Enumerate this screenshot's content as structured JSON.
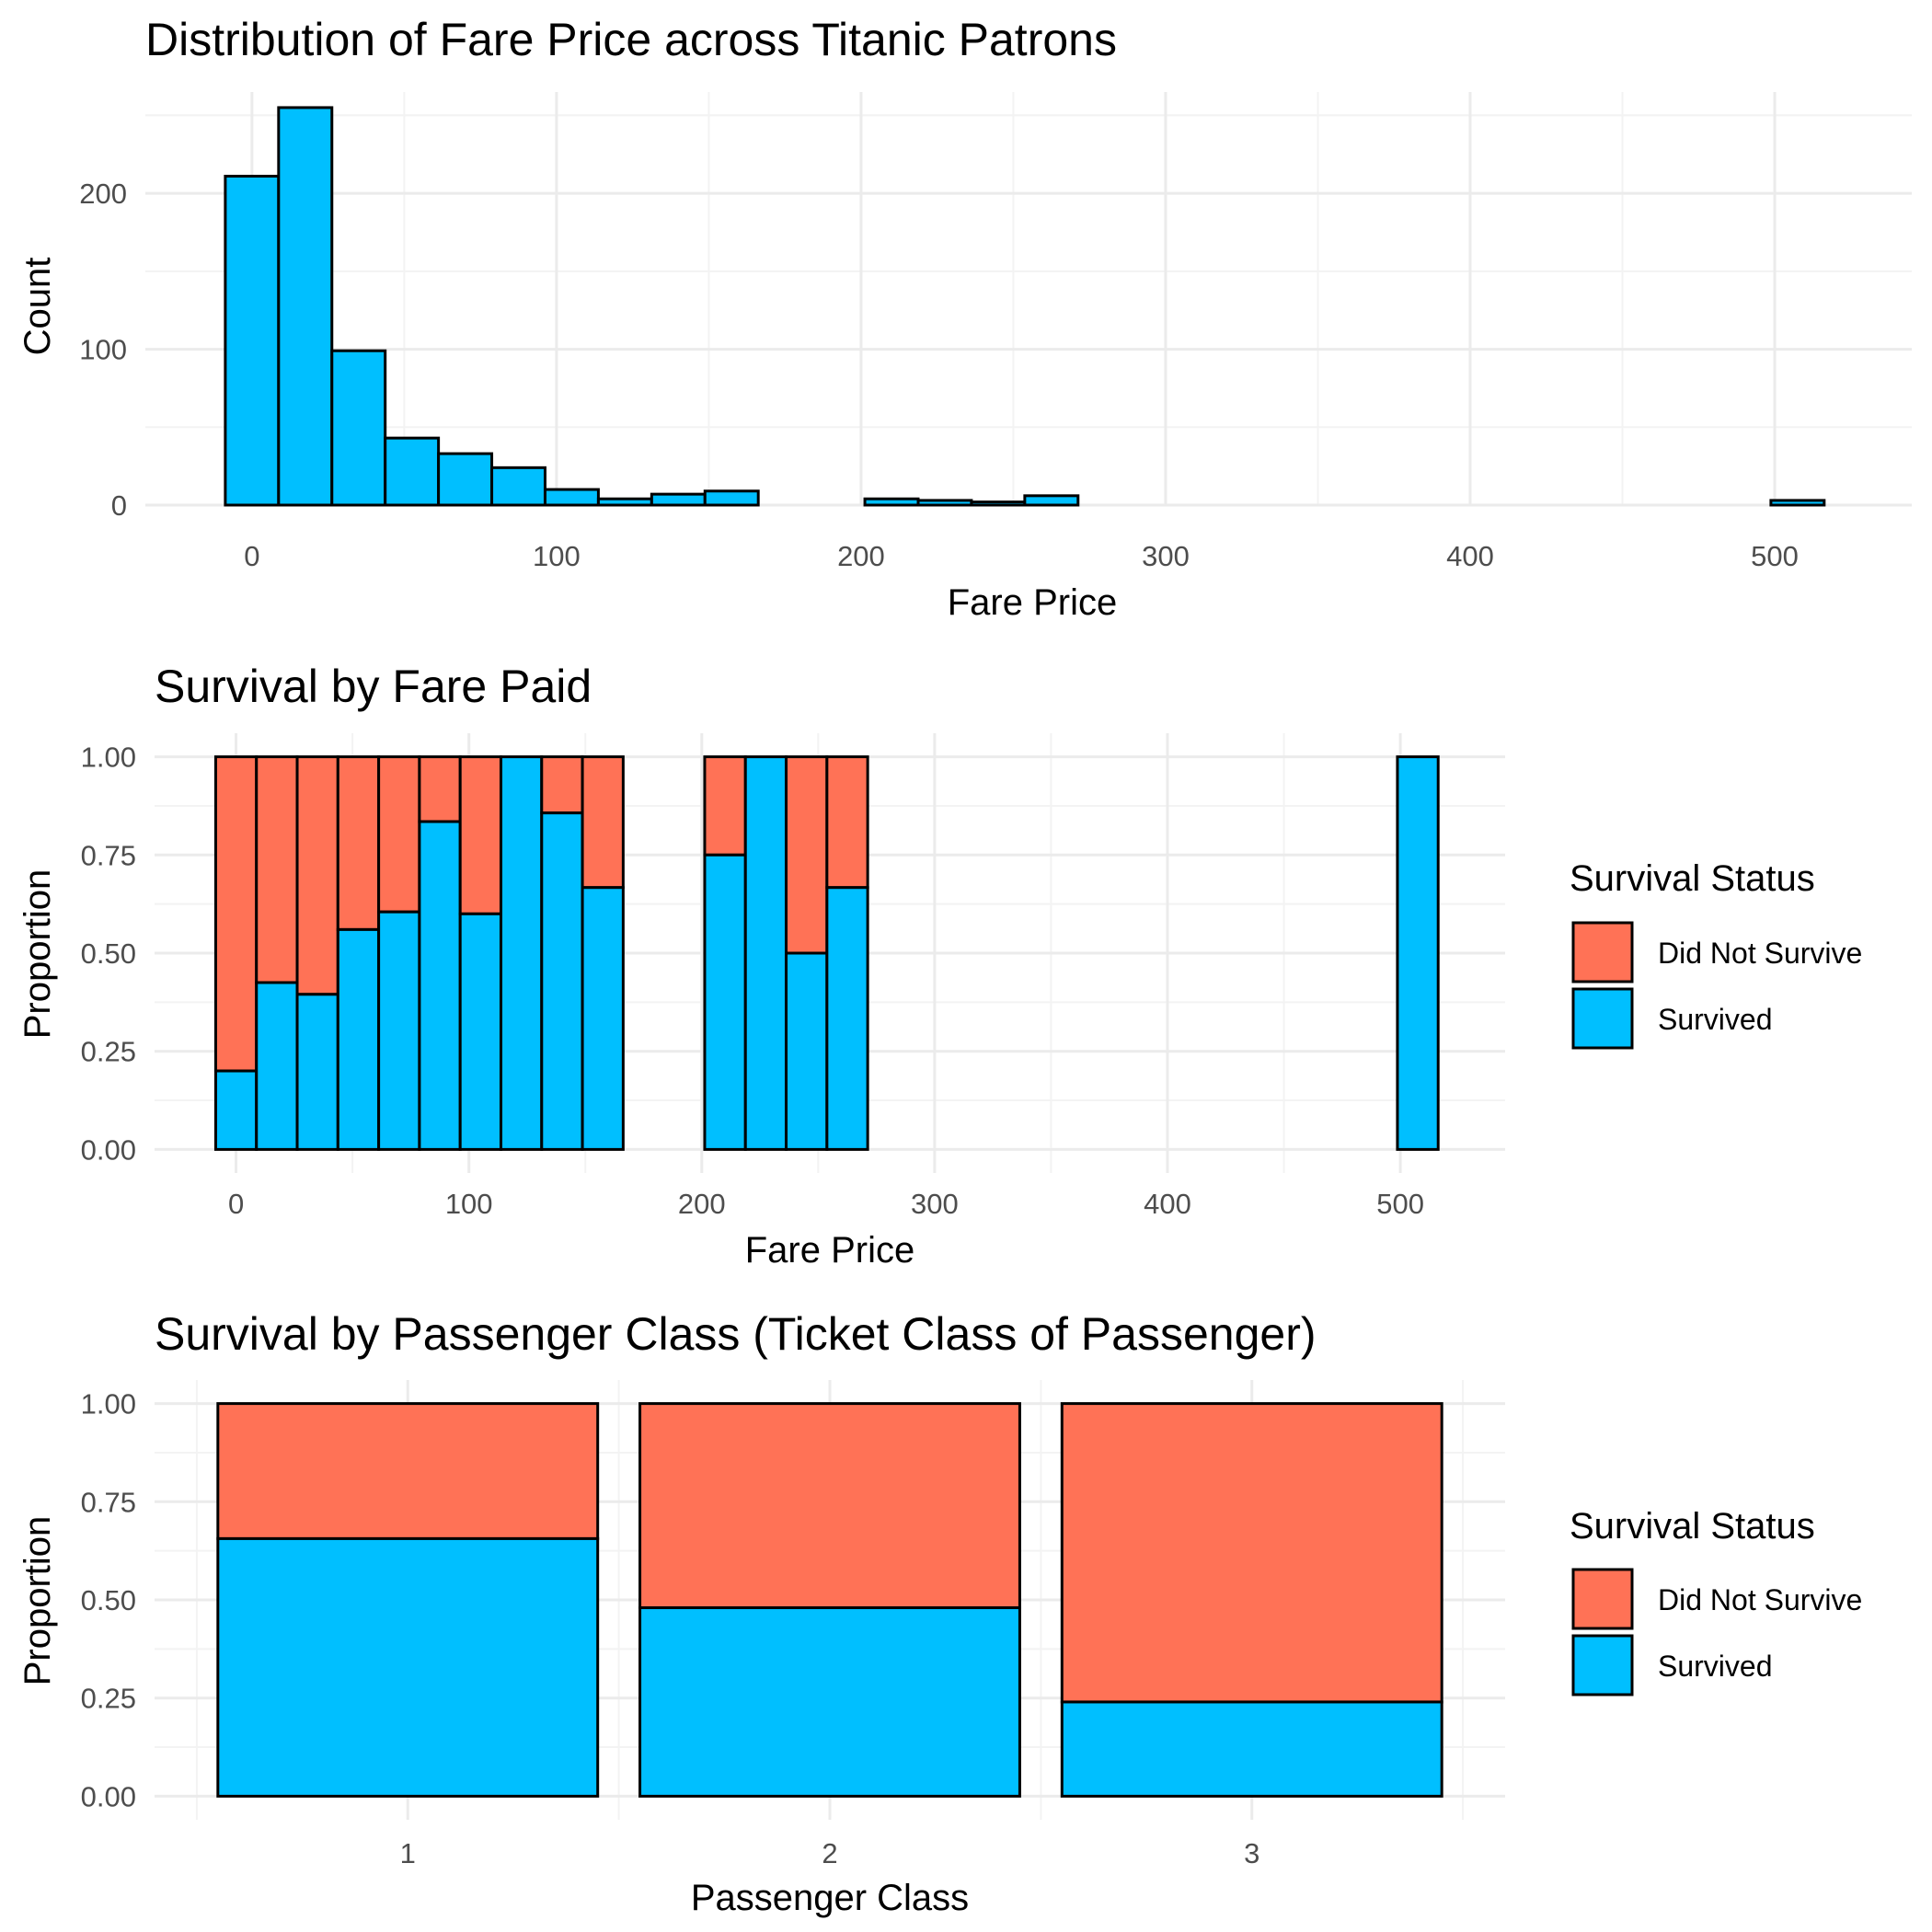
{
  "colors": {
    "survived": "#00BFFF",
    "did_not_survive": "#FF7256",
    "histogram_fill": "#00BFFF",
    "outline": "#000000"
  },
  "chart_data": [
    {
      "type": "bar",
      "title": "Distribution of Fare Price across Titanic Patrons",
      "xlabel": "Fare Price",
      "ylabel": "Count",
      "bin_width": 17.5,
      "bin_centers": [
        0,
        17.5,
        35,
        52.5,
        70,
        87.5,
        105,
        122.5,
        140,
        157.5,
        175,
        192.5,
        210,
        227.5,
        245,
        262.5,
        280,
        297.5,
        315,
        332.5,
        350,
        367.5,
        385,
        402.5,
        420,
        437.5,
        455,
        472.5,
        490,
        507.5
      ],
      "values": [
        211,
        255,
        99,
        43,
        33,
        24,
        10,
        4,
        7,
        9,
        0,
        0,
        4,
        3,
        2,
        6,
        0,
        0,
        0,
        0,
        0,
        0,
        0,
        0,
        0,
        0,
        0,
        0,
        0,
        3
      ],
      "xlim": [
        -35,
        545
      ],
      "ylim": [
        0,
        265
      ],
      "x_ticks": [
        0,
        100,
        200,
        300,
        400,
        500
      ],
      "y_ticks": [
        0,
        100,
        200
      ],
      "grid": true
    },
    {
      "type": "bar",
      "stacked": true,
      "title": "Survival by Fare Paid",
      "xlabel": "Fare Price",
      "ylabel": "Proportion",
      "bin_width": 17.5,
      "bin_centers": [
        0,
        17.5,
        35,
        52.5,
        70,
        87.5,
        105,
        122.5,
        140,
        157.5,
        210,
        227.5,
        245,
        262.5,
        507.5
      ],
      "series": [
        {
          "name": "Survived",
          "values": [
            0.2,
            0.425,
            0.395,
            0.56,
            0.605,
            0.835,
            0.6,
            1.0,
            0.857,
            0.667,
            0.75,
            1.0,
            0.5,
            0.667,
            1.0
          ]
        },
        {
          "name": "Did Not Survive",
          "values": [
            0.8,
            0.575,
            0.605,
            0.44,
            0.395,
            0.165,
            0.4,
            0.0,
            0.143,
            0.333,
            0.25,
            0.0,
            0.5,
            0.333,
            0.0
          ]
        }
      ],
      "xlim": [
        -35,
        545
      ],
      "ylim": [
        0,
        1.0
      ],
      "x_ticks": [
        0,
        100,
        200,
        300,
        400,
        500
      ],
      "y_ticks": [
        "0.00",
        "0.25",
        "0.50",
        "0.75",
        "1.00"
      ],
      "legend_position": "right",
      "grid": true
    },
    {
      "type": "bar",
      "stacked": true,
      "title": "Survival by Passenger Class (Ticket Class of Passenger)",
      "xlabel": "Passenger Class",
      "ylabel": "Proportion",
      "categories": [
        "1",
        "2",
        "3"
      ],
      "series": [
        {
          "name": "Survived",
          "values": [
            0.656,
            0.48,
            0.24
          ]
        },
        {
          "name": "Did Not Survive",
          "values": [
            0.344,
            0.52,
            0.76
          ]
        }
      ],
      "ylim": [
        0,
        1.0
      ],
      "y_ticks": [
        "0.00",
        "0.25",
        "0.50",
        "0.75",
        "1.00"
      ],
      "legend_position": "right",
      "grid": true
    }
  ],
  "legend": {
    "title": "Survival Status",
    "items": [
      {
        "label": "Did Not Survive",
        "color": "#FF7256"
      },
      {
        "label": "Survived",
        "color": "#00BFFF"
      }
    ]
  }
}
